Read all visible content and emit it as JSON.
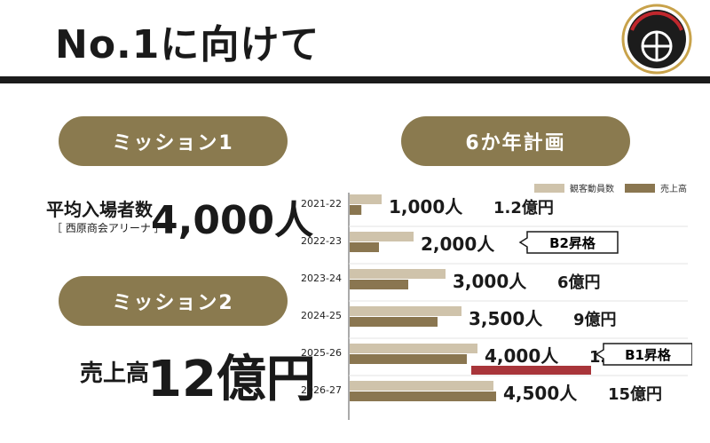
{
  "page_title": "No.1に向けて",
  "colors": {
    "gold": "#8a7a4f",
    "light": "#cfc3ab",
    "dark": "#8a7650",
    "red": "#a8353a",
    "black": "#1c1c1c"
  },
  "logo": {
    "text": "KAGOSHIMA REBNISE",
    "icon": "basketball-logo-icon"
  },
  "mission1": {
    "pill": "ミッション1",
    "label": "平均入場者数",
    "sub": "［ 西原商会アリーナ ］",
    "value": "4,000人"
  },
  "mission2": {
    "pill": "ミッション2",
    "label": "売上高",
    "value": "12億円"
  },
  "plan_pill": "6か年計画",
  "chart_data": {
    "type": "bar",
    "orientation": "horizontal",
    "categories": [
      "2021-22",
      "2022-23",
      "2023-24",
      "2024-25",
      "2025-26",
      "2026-27"
    ],
    "series": [
      {
        "name": "観客動員数",
        "color": "#cfc3ab",
        "values": [
          1000,
          2000,
          3000,
          3500,
          4000,
          4500
        ]
      },
      {
        "name": "売上高",
        "color": "#8a7650",
        "values": [
          1.2,
          3,
          6,
          9,
          12,
          15
        ]
      }
    ],
    "labels": [
      {
        "count": "1,000人",
        "sales": "1.2億円"
      },
      {
        "count": "2,000人",
        "sales": "3億円"
      },
      {
        "count": "3,000人",
        "sales": "6億円"
      },
      {
        "count": "3,500人",
        "sales": "9億円"
      },
      {
        "count": "4,000人",
        "sales": "12億円"
      },
      {
        "count": "4,500人",
        "sales": "15億円"
      }
    ],
    "legend_position": "top-right",
    "callouts": [
      {
        "row": 1,
        "text": "B2昇格"
      },
      {
        "row": 4,
        "text": "B1昇格"
      }
    ],
    "highlight_row": 4
  }
}
